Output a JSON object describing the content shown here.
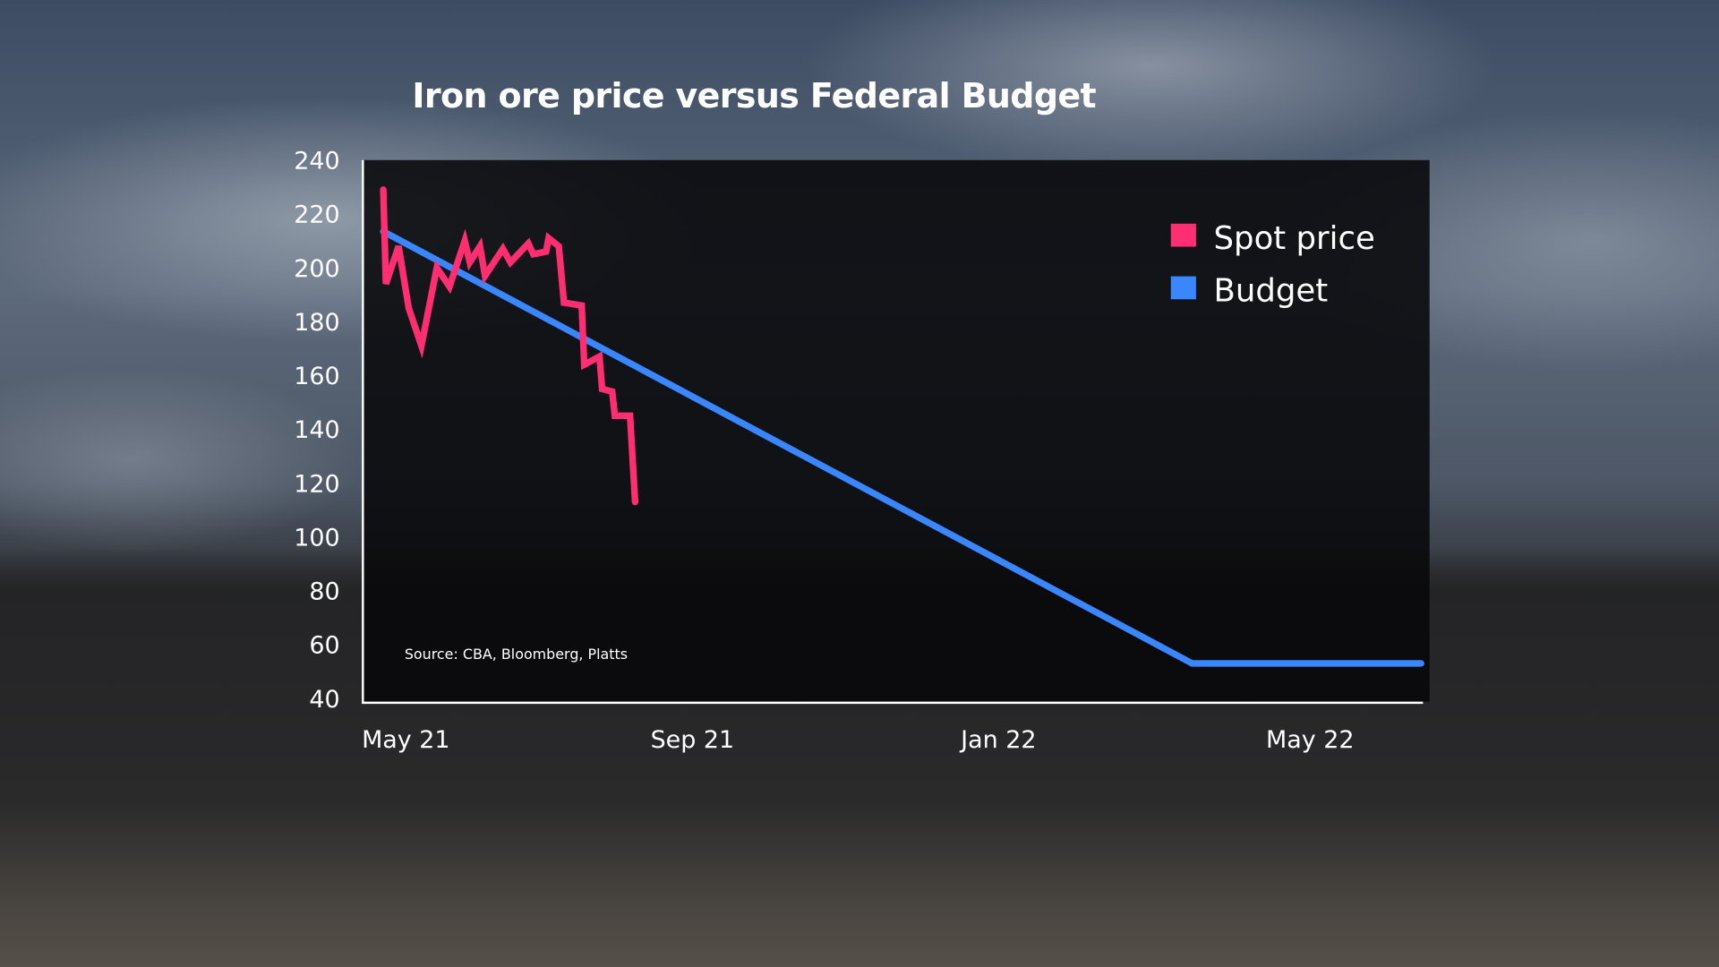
{
  "chart_data": {
    "type": "line",
    "title": "Iron ore price versus Federal Budget",
    "source": "Source: CBA, Bloomberg, Platts",
    "xlabel": "",
    "ylabel": "",
    "ylim": [
      40,
      240
    ],
    "yticks": [
      "240",
      "220",
      "200",
      "180",
      "160",
      "140",
      "120",
      "100",
      "80",
      "60",
      "40"
    ],
    "xticks": [
      {
        "label": "May 21",
        "date": "2021-05-01"
      },
      {
        "label": "Sep 21",
        "date": "2021-09-01"
      },
      {
        "label": "Jan 22",
        "date": "2022-01-01"
      },
      {
        "label": "May 22",
        "date": "2022-05-01"
      }
    ],
    "grid": false,
    "legend_position": "top-right",
    "series": [
      {
        "name": "Spot price",
        "color": "#ff2e72",
        "points": [
          [
            "2021-05-03",
            229
          ],
          [
            "2021-05-04",
            194
          ],
          [
            "2021-05-09",
            208
          ],
          [
            "2021-05-13",
            185
          ],
          [
            "2021-05-18",
            171
          ],
          [
            "2021-05-24",
            200
          ],
          [
            "2021-05-29",
            193
          ],
          [
            "2021-06-04",
            210
          ],
          [
            "2021-06-06",
            202
          ],
          [
            "2021-06-10",
            208
          ],
          [
            "2021-06-12",
            197
          ],
          [
            "2021-06-19",
            207
          ],
          [
            "2021-06-22",
            202
          ],
          [
            "2021-06-29",
            209
          ],
          [
            "2021-07-01",
            205
          ],
          [
            "2021-07-06",
            206
          ],
          [
            "2021-07-07",
            211
          ],
          [
            "2021-07-11",
            208
          ],
          [
            "2021-07-13",
            187
          ],
          [
            "2021-07-20",
            186
          ],
          [
            "2021-07-21",
            164
          ],
          [
            "2021-07-27",
            167
          ],
          [
            "2021-07-28",
            155
          ],
          [
            "2021-08-01",
            154
          ],
          [
            "2021-08-02",
            145
          ],
          [
            "2021-08-08",
            145
          ],
          [
            "2021-08-10",
            113
          ]
        ]
      },
      {
        "name": "Budget",
        "color": "#3a86ff",
        "points": [
          [
            "2021-05-03",
            213.5
          ],
          [
            "2022-03-17",
            53
          ],
          [
            "2022-06-15",
            53
          ]
        ]
      }
    ]
  }
}
